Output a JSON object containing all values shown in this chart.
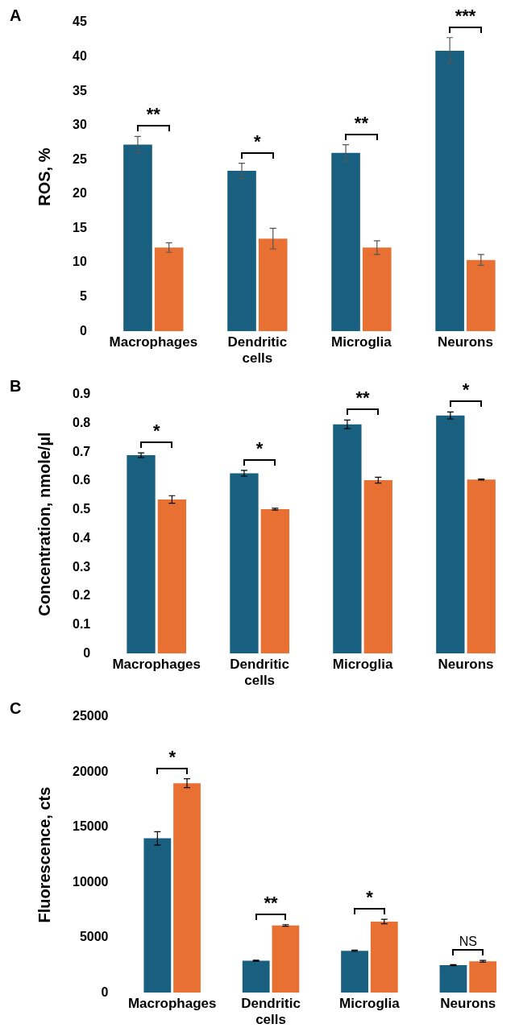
{
  "chart_data": [
    {
      "type": "bar",
      "title": "A",
      "ylabel": "ROS, %",
      "categories": [
        "Macrophages",
        "Dendritic cells",
        "Microglia",
        "Neurons"
      ],
      "ylim": [
        0,
        45
      ],
      "yticks": [
        0,
        5,
        10,
        15,
        20,
        25,
        30,
        35,
        40,
        45
      ],
      "grid": false,
      "legend": false,
      "series": [
        {
          "color": "#185f80",
          "values": [
            27.2,
            23.4,
            26.0,
            40.9
          ],
          "errors": [
            1.2,
            1.1,
            1.2,
            1.9
          ]
        },
        {
          "color": "#e87033",
          "values": [
            12.2,
            13.5,
            12.2,
            10.4
          ],
          "errors": [
            0.7,
            1.5,
            1.0,
            0.8
          ]
        }
      ],
      "annotations": [
        "**",
        "*",
        "**",
        "***"
      ]
    },
    {
      "type": "bar",
      "title": "B",
      "ylabel": "Concentration, nmole/µl",
      "categories": [
        "Macrophages",
        "Dendritic cells",
        "Microglia",
        "Neurons"
      ],
      "ylim": [
        0,
        0.9
      ],
      "yticks": [
        0,
        0.1,
        0.2,
        0.3,
        0.4,
        0.5,
        0.6,
        0.7,
        0.8,
        0.9
      ],
      "grid": false,
      "legend": false,
      "series": [
        {
          "color": "#185f80",
          "values": [
            0.69,
            0.627,
            0.797,
            0.828
          ],
          "errors": [
            0.008,
            0.01,
            0.015,
            0.012
          ]
        },
        {
          "color": "#e87033",
          "values": [
            0.536,
            0.502,
            0.603,
            0.605
          ],
          "errors": [
            0.013,
            0.003,
            0.01,
            0.002
          ]
        }
      ],
      "annotations": [
        "*",
        "*",
        "**",
        "*"
      ]
    },
    {
      "type": "bar",
      "title": "C",
      "ylabel": "Fluorescence, cts",
      "categories": [
        "Macrophages",
        "Dendritic cells",
        "Microglia",
        "Neurons"
      ],
      "ylim": [
        0,
        25000
      ],
      "yticks": [
        0,
        5000,
        10000,
        15000,
        20000,
        25000
      ],
      "grid": false,
      "legend": false,
      "series": [
        {
          "color": "#185f80",
          "values": [
            14000,
            2900,
            3800,
            2500
          ],
          "errors": [
            600,
            50,
            60,
            50
          ]
        },
        {
          "color": "#e87033",
          "values": [
            19000,
            6100,
            6450,
            2850
          ],
          "errors": [
            400,
            70,
            200,
            80
          ]
        }
      ],
      "annotations": [
        "*",
        "**",
        "*",
        "NS"
      ]
    }
  ]
}
